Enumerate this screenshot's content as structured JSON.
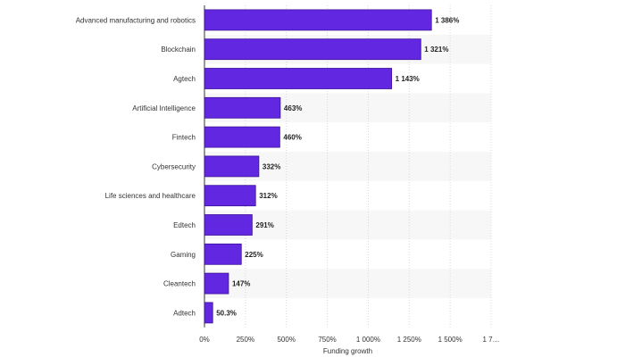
{
  "chart_data": {
    "type": "bar",
    "orientation": "horizontal",
    "categories": [
      "Advanced manufacturing and robotics",
      "Blockchain",
      "Agtech",
      "Artificial Intelligence",
      "Fintech",
      "Cybersecurity",
      "Life sciences and healthcare",
      "Edtech",
      "Gaming",
      "Cleantech",
      "Adtech"
    ],
    "values": [
      1386,
      1321,
      1143,
      463,
      460,
      332,
      312,
      291,
      225,
      147,
      50.3
    ],
    "data_labels": [
      "1 386%",
      "1 321%",
      "1 143%",
      "463%",
      "460%",
      "332%",
      "312%",
      "291%",
      "225%",
      "147%",
      "50.3%"
    ],
    "x_ticks": [
      0,
      250,
      500,
      750,
      1000,
      1250,
      1500,
      1750
    ],
    "x_tick_labels": [
      "0%",
      "250%",
      "500%",
      "750%",
      "1 000%",
      "1 250%",
      "1 500%",
      "1 7…"
    ],
    "xlabel": "Funding growth",
    "xlim": [
      0,
      1750
    ],
    "grid": true,
    "colors": {
      "bar": "#6227e0",
      "bar_stroke": "#3b1199",
      "band": "#f7f7f7",
      "grid": "#d8d8d8"
    }
  }
}
